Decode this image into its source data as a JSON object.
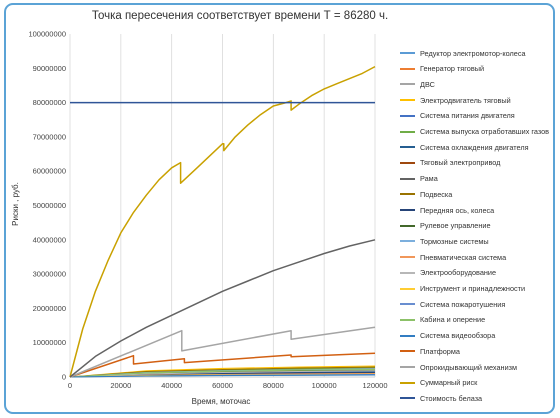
{
  "chart_data": {
    "type": "line",
    "title": "Точка пересечения соответствует времени Т = 86280 ч.",
    "xlabel": "Время, моточас",
    "ylabel": "Риски , руб.",
    "xlim": [
      0,
      120000
    ],
    "ylim": [
      0,
      100000000
    ],
    "xticks": [
      0,
      20000,
      40000,
      60000,
      80000,
      100000,
      120000
    ],
    "yticks": [
      0,
      10000000,
      20000000,
      30000000,
      40000000,
      50000000,
      60000000,
      70000000,
      80000000,
      90000000,
      100000000
    ],
    "grid": "vertical",
    "legend_position": "right",
    "series": [
      {
        "name": "Редуктор электромотор-колеса",
        "color": "#5b9bd5",
        "x": [
          0,
          30000,
          60000,
          90000,
          120000
        ],
        "y": [
          0,
          700000,
          1000000,
          1200000,
          1400000
        ]
      },
      {
        "name": "Генератор тяговый",
        "color": "#ed7d31",
        "x": [
          0,
          30000,
          60000,
          90000,
          120000
        ],
        "y": [
          0,
          1500000,
          2000000,
          2300000,
          2600000
        ]
      },
      {
        "name": "ДВС",
        "color": "#a5a5a5",
        "x": [
          0,
          30000,
          60000,
          90000,
          120000
        ],
        "y": [
          0,
          1200000,
          1700000,
          2000000,
          2200000
        ]
      },
      {
        "name": "Электродвигатель тяговый",
        "color": "#ffc000",
        "x": [
          0,
          30000,
          60000,
          90000,
          120000
        ],
        "y": [
          0,
          1800000,
          2500000,
          2900000,
          3200000
        ]
      },
      {
        "name": "Система питания двигателя",
        "color": "#4472c4",
        "x": [
          0,
          30000,
          60000,
          90000,
          120000
        ],
        "y": [
          0,
          900000,
          1300000,
          1500000,
          1700000
        ]
      },
      {
        "name": "Система выпуска отработавших газов",
        "color": "#70ad47",
        "x": [
          0,
          30000,
          60000,
          90000,
          120000
        ],
        "y": [
          0,
          1400000,
          2000000,
          2400000,
          2700000
        ]
      },
      {
        "name": "Система охлаждения двигателя",
        "color": "#255e91",
        "x": [
          0,
          30000,
          60000,
          90000,
          120000
        ],
        "y": [
          0,
          800000,
          1100000,
          1300000,
          1500000
        ]
      },
      {
        "name": "Тяговый электропривод",
        "color": "#9e480e",
        "x": [
          0,
          30000,
          60000,
          90000,
          120000
        ],
        "y": [
          0,
          1100000,
          1600000,
          1900000,
          2100000
        ]
      },
      {
        "name": "Рама",
        "color": "#636363",
        "x": [
          0,
          30000,
          60000,
          90000,
          120000
        ],
        "y": [
          0,
          600000,
          900000,
          1100000,
          1200000
        ]
      },
      {
        "name": "Подвеска",
        "color": "#997300",
        "x": [
          0,
          30000,
          60000,
          90000,
          120000
        ],
        "y": [
          0,
          1600000,
          2200000,
          2600000,
          2900000
        ]
      },
      {
        "name": "Передняя ось, колеса",
        "color": "#264478",
        "x": [
          0,
          30000,
          60000,
          90000,
          120000
        ],
        "y": [
          0,
          700000,
          1000000,
          1200000,
          1300000
        ]
      },
      {
        "name": "Рулевое управление",
        "color": "#43682b",
        "x": [
          0,
          30000,
          60000,
          90000,
          120000
        ],
        "y": [
          0,
          1000000,
          1400000,
          1700000,
          1900000
        ]
      },
      {
        "name": "Тормозные системы",
        "color": "#7cafdd",
        "x": [
          0,
          30000,
          60000,
          90000,
          120000
        ],
        "y": [
          0,
          1300000,
          1800000,
          2100000,
          2400000
        ]
      },
      {
        "name": "Пневматическая система",
        "color": "#f1975a",
        "x": [
          0,
          30000,
          60000,
          90000,
          120000
        ],
        "y": [
          0,
          500000,
          700000,
          900000,
          1000000
        ]
      },
      {
        "name": "Электрооборудование",
        "color": "#b7b7b7",
        "x": [
          0,
          30000,
          60000,
          90000,
          120000
        ],
        "y": [
          0,
          900000,
          1300000,
          1600000,
          1800000
        ]
      },
      {
        "name": "Инструмент и принадлежности",
        "color": "#ffcd33",
        "x": [
          0,
          30000,
          60000,
          90000,
          120000
        ],
        "y": [
          0,
          400000,
          600000,
          700000,
          800000
        ]
      },
      {
        "name": "Система пожаротушения",
        "color": "#698ed0",
        "x": [
          0,
          30000,
          60000,
          90000,
          120000
        ],
        "y": [
          0,
          300000,
          500000,
          600000,
          700000
        ]
      },
      {
        "name": "Кабина и оперение",
        "color": "#8cc168",
        "x": [
          0,
          30000,
          60000,
          90000,
          120000
        ],
        "y": [
          0,
          1200000,
          1700000,
          2000000,
          2200000
        ]
      },
      {
        "name": "Система видеообзора",
        "color": "#327dc2",
        "x": [
          0,
          30000,
          60000,
          90000,
          120000
        ],
        "y": [
          0,
          300000,
          400000,
          500000,
          600000
        ]
      },
      {
        "name": "Платформа",
        "color": "#d26012",
        "x": [
          0,
          25000,
          25000,
          45000,
          45000,
          87000,
          87000,
          120000
        ],
        "y": [
          0,
          6200000,
          3800000,
          5300000,
          4200000,
          6400000,
          5900000,
          6900000
        ]
      },
      {
        "name": "Опрокидывающий механизм",
        "color": "#a5a5a5",
        "x": [
          0,
          44000,
          44000,
          87000,
          87000,
          120000
        ],
        "y": [
          0,
          13500000,
          7600000,
          13500000,
          11000000,
          14500000
        ]
      },
      {
        "name": "Суммарный риск",
        "color": "#c9a100",
        "x": [
          0,
          5000,
          10000,
          15000,
          20000,
          25000,
          30000,
          35000,
          40000,
          43500,
          43500,
          50000,
          55000,
          60000,
          60500,
          60500,
          65000,
          70000,
          75000,
          80000,
          85000,
          87000,
          87000,
          90000,
          95000,
          100000,
          105000,
          110000,
          115000,
          120000
        ],
        "y": [
          0,
          14000000,
          25000000,
          34000000,
          42000000,
          48000000,
          53000000,
          57500000,
          61000000,
          62500000,
          56500000,
          61000000,
          64500000,
          68000000,
          68000000,
          66000000,
          70000000,
          73500000,
          76500000,
          79000000,
          80000000,
          80500000,
          77800000,
          79500000,
          82000000,
          84000000,
          85500000,
          87000000,
          88500000,
          90500000
        ]
      },
      {
        "name": "Стоимость белаза",
        "color": "#2f5597",
        "x": [
          0,
          120000
        ],
        "y": [
          80000000,
          80000000
        ]
      },
      {
        "name": "",
        "color": "#636363",
        "x": [
          0,
          10000,
          20000,
          30000,
          40000,
          50000,
          60000,
          70000,
          80000,
          90000,
          100000,
          110000,
          120000
        ],
        "y": [
          0,
          6000000,
          10500000,
          14500000,
          18000000,
          21500000,
          25000000,
          28000000,
          31000000,
          33500000,
          36000000,
          38200000,
          40000000
        ]
      }
    ]
  }
}
